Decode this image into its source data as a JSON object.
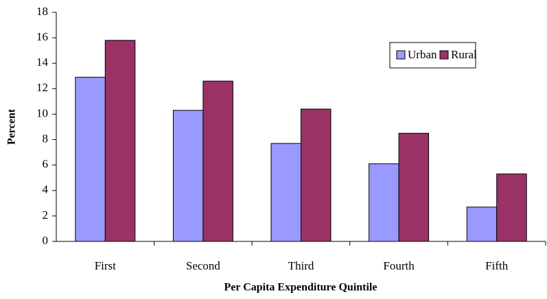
{
  "chart_data": {
    "type": "bar",
    "xlabel": "Per Capita Expenditure Quintile",
    "ylabel": "Percent",
    "categories": [
      "First",
      "Second",
      "Third",
      "Fourth",
      "Fifth"
    ],
    "series": [
      {
        "name": "Urban",
        "color": "#9999ff",
        "values": [
          12.9,
          10.3,
          7.7,
          6.1,
          2.7
        ]
      },
      {
        "name": "Rural",
        "color": "#993366",
        "values": [
          15.8,
          12.6,
          10.4,
          8.5,
          5.3
        ]
      }
    ],
    "ylim": [
      0,
      18
    ],
    "yticks": [
      0,
      2,
      4,
      6,
      8,
      10,
      12,
      14,
      16,
      18
    ],
    "grid": false,
    "legend": "upper-right"
  }
}
